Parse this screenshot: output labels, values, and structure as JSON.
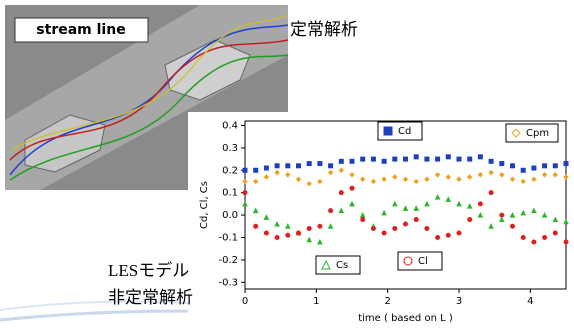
{
  "image_label": "stream line",
  "captions": [
    "定常解析",
    "LESモデル",
    "非定常解析"
  ],
  "chart_data": {
    "type": "scatter",
    "xlabel": "time ( based on L )",
    "ylabel": "Cd, Cl, Cs",
    "x": [
      0,
      0.15,
      0.3,
      0.45,
      0.6,
      0.75,
      0.9,
      1.05,
      1.2,
      1.35,
      1.5,
      1.65,
      1.8,
      1.95,
      2.1,
      2.25,
      2.4,
      2.55,
      2.7,
      2.85,
      3.0,
      3.15,
      3.3,
      3.45,
      3.6,
      3.75,
      3.9,
      4.05,
      4.2,
      4.35,
      4.5
    ],
    "series": [
      {
        "name": "Cd",
        "color": "#1f3fbf",
        "marker": "square",
        "values": [
          0.2,
          0.2,
          0.21,
          0.22,
          0.22,
          0.22,
          0.23,
          0.23,
          0.22,
          0.24,
          0.24,
          0.25,
          0.25,
          0.24,
          0.25,
          0.25,
          0.26,
          0.25,
          0.25,
          0.26,
          0.25,
          0.25,
          0.26,
          0.24,
          0.23,
          0.22,
          0.2,
          0.21,
          0.22,
          0.22,
          0.23
        ]
      },
      {
        "name": "Cpm",
        "color": "#f0a020",
        "marker": "diamond",
        "values": [
          0.15,
          0.15,
          0.17,
          0.19,
          0.18,
          0.16,
          0.14,
          0.15,
          0.19,
          0.2,
          0.18,
          0.16,
          0.15,
          0.16,
          0.17,
          0.16,
          0.15,
          0.16,
          0.18,
          0.17,
          0.16,
          0.17,
          0.18,
          0.19,
          0.18,
          0.16,
          0.15,
          0.16,
          0.18,
          0.18,
          0.17
        ]
      },
      {
        "name": "Cs",
        "color": "#2fb52f",
        "marker": "triangle",
        "values": [
          0.05,
          0.02,
          -0.01,
          -0.04,
          -0.05,
          -0.08,
          -0.11,
          -0.12,
          -0.05,
          0.02,
          0.05,
          0.0,
          -0.05,
          0.01,
          0.05,
          0.03,
          0.03,
          0.05,
          0.08,
          0.07,
          0.05,
          0.04,
          0.0,
          -0.05,
          -0.02,
          0.0,
          0.01,
          0.02,
          0.0,
          -0.02,
          -0.03
        ]
      },
      {
        "name": "Cl",
        "color": "#e02020",
        "marker": "circle",
        "values": [
          0.1,
          -0.05,
          -0.08,
          -0.1,
          -0.09,
          -0.08,
          -0.06,
          -0.05,
          0.02,
          0.1,
          0.12,
          -0.02,
          -0.06,
          -0.08,
          -0.06,
          -0.04,
          -0.02,
          -0.06,
          -0.1,
          -0.09,
          -0.08,
          -0.02,
          0.05,
          0.1,
          0.0,
          -0.05,
          -0.1,
          -0.12,
          -0.1,
          -0.08,
          -0.12
        ]
      }
    ],
    "xlim": [
      0,
      4.5
    ],
    "xticks": [
      0,
      1,
      2,
      3,
      4
    ],
    "ylim": [
      -0.33,
      0.42
    ],
    "yticks": [
      -0.3,
      -0.2,
      -0.1,
      {
        "value": 0,
        "label": "0.0"
      },
      0.1,
      0.2,
      0.3,
      0.4
    ]
  }
}
